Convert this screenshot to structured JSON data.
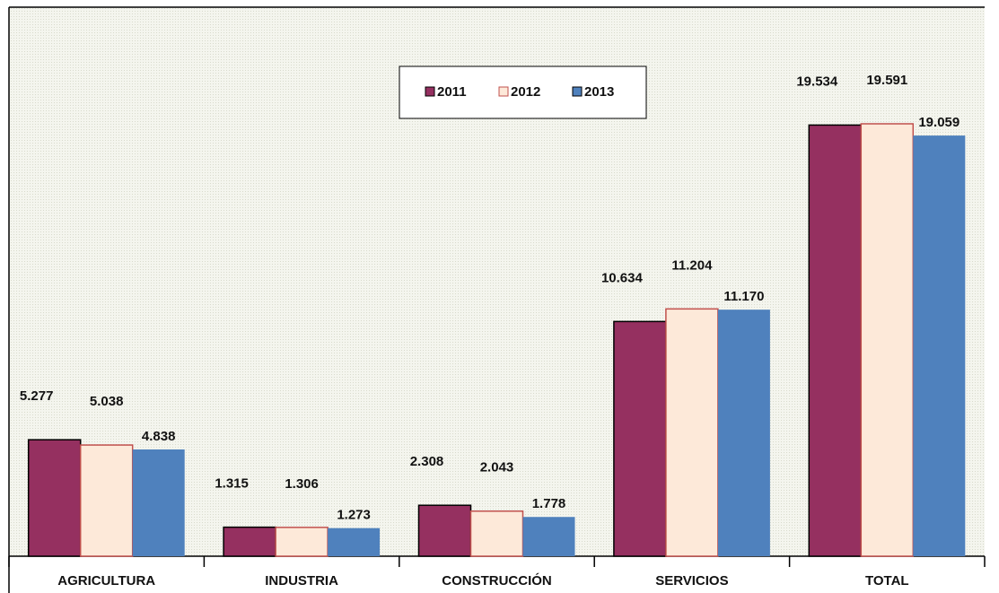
{
  "chart_data": {
    "type": "bar",
    "categories": [
      "AGRICULTURA",
      "INDUSTRIA",
      "CONSTRUCCIÓN",
      "SERVICIOS",
      "TOTAL"
    ],
    "series": [
      {
        "name": "2011",
        "color": "#953060",
        "values": [
          5277,
          1315,
          2308,
          10634,
          19534
        ],
        "value_labels": [
          "5.277",
          "1.315",
          "2.308",
          "10.634",
          "19.534"
        ]
      },
      {
        "name": "2012",
        "color": "#fde9d9",
        "values": [
          5038,
          1306,
          2043,
          11204,
          19591
        ],
        "value_labels": [
          "5.038",
          "1.306",
          "2.043",
          "11.204",
          "19.591"
        ]
      },
      {
        "name": "2013",
        "color": "#4f81bd",
        "values": [
          4838,
          1273,
          1778,
          11170,
          19059
        ],
        "value_labels": [
          "4.838",
          "1.273",
          "1.778",
          "11.170",
          "19.059"
        ]
      }
    ]
  }
}
